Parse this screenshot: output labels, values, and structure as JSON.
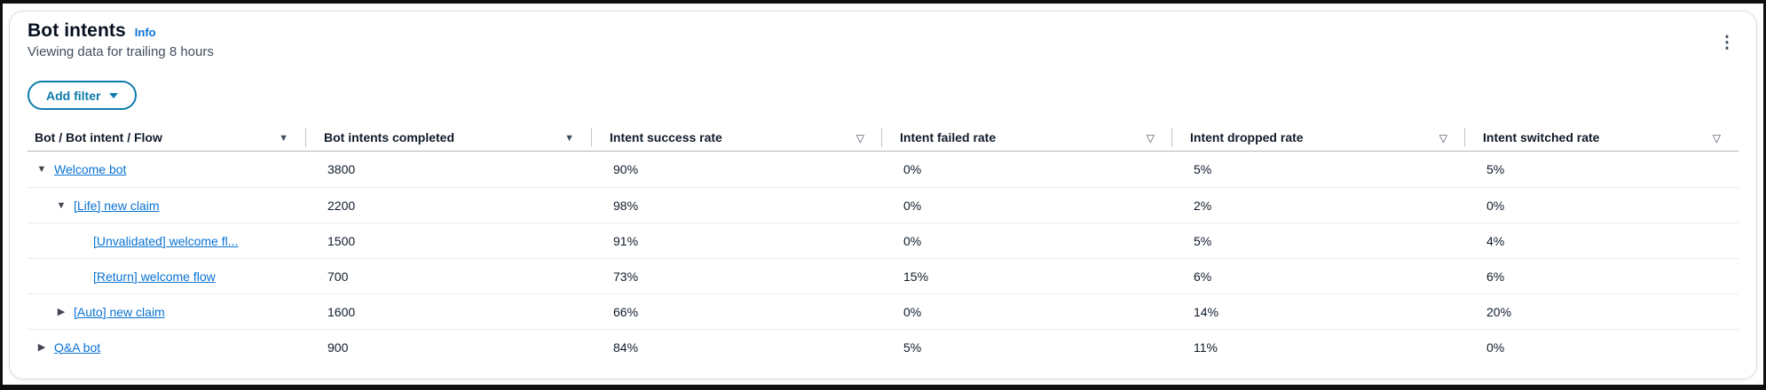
{
  "panel": {
    "title": "Bot intents",
    "info_label": "Info",
    "subtitle": "Viewing data for trailing 8 hours",
    "add_filter_label": "Add filter",
    "kebab_menu": "vertical-ellipsis"
  },
  "table": {
    "columns": [
      {
        "label": "Bot / Bot intent / Flow",
        "filter_icon": "filter-dropdown-filled"
      },
      {
        "label": "Bot intents completed",
        "filter_icon": "filter-dropdown-filled"
      },
      {
        "label": "Intent success rate",
        "filter_icon": "filter-dropdown-outlined"
      },
      {
        "label": "Intent failed rate",
        "filter_icon": "filter-dropdown-outlined"
      },
      {
        "label": "Intent dropped rate",
        "filter_icon": "filter-dropdown-outlined"
      },
      {
        "label": "Intent switched rate",
        "filter_icon": "filter-dropdown-outlined"
      }
    ],
    "rows": [
      {
        "name": "Welcome bot",
        "level": 1,
        "caret": "expanded",
        "completed": "3800",
        "success_rate": "90%",
        "failed_rate": "0%",
        "dropped_rate": "5%",
        "switched_rate": "5%"
      },
      {
        "name": "[Life] new claim",
        "level": 2,
        "caret": "expanded",
        "completed": "2200",
        "success_rate": "98%",
        "failed_rate": "0%",
        "dropped_rate": "2%",
        "switched_rate": "0%"
      },
      {
        "name": "[Unvalidated] welcome fl...",
        "level": 3,
        "caret": "none",
        "completed": "1500",
        "success_rate": "91%",
        "failed_rate": "0%",
        "dropped_rate": "5%",
        "switched_rate": "4%"
      },
      {
        "name": "[Return] welcome flow",
        "level": 3,
        "caret": "none",
        "completed": "700",
        "success_rate": "73%",
        "failed_rate": "15%",
        "dropped_rate": "6%",
        "switched_rate": "6%"
      },
      {
        "name": "[Auto] new claim",
        "level": 2,
        "caret": "collapsed",
        "completed": "1600",
        "success_rate": "66%",
        "failed_rate": "0%",
        "dropped_rate": "14%",
        "switched_rate": "20%"
      },
      {
        "name": "Q&A bot",
        "level": 1,
        "caret": "collapsed",
        "completed": "900",
        "success_rate": "84%",
        "failed_rate": "5%",
        "dropped_rate": "11%",
        "switched_rate": "0%"
      }
    ]
  },
  "colors": {
    "link": "#0972d3",
    "button_accent": "#0c7bab",
    "text": "#0f1b2a",
    "muted_text": "#414d5c",
    "header_divider": "#aeb8c2",
    "row_divider": "#e9ebed",
    "card_border": "#d9dfe6",
    "frame": "#101010"
  }
}
